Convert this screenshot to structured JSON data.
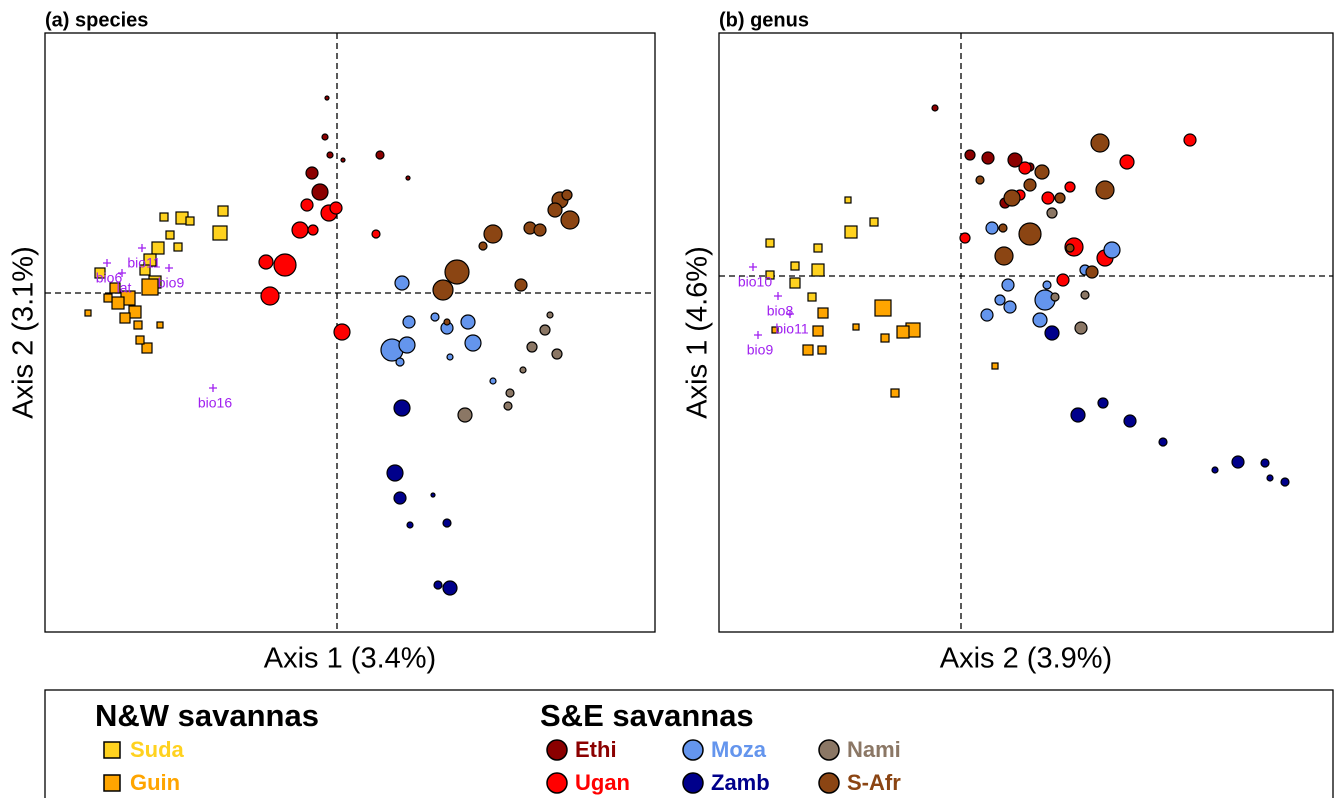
{
  "chart_data": [
    {
      "type": "scatter",
      "title": "(a) species",
      "xlabel": "Axis 1 (3.4%)",
      "ylabel": "Axis 2 (3.1%)",
      "xlim": [
        -2.92,
        3.18
      ],
      "ylim": [
        -3.39,
        2.6
      ],
      "series": [
        {
          "name": "Suda",
          "color": "#FFD21F",
          "shape": "square",
          "x": [
            -1.14,
            -1.17,
            -1.55,
            -1.47,
            -1.73,
            -1.79,
            -1.87,
            -1.92,
            -1.59,
            -2.37,
            -1.67,
            -1.82
          ],
          "y": [
            0.82,
            0.6,
            0.75,
            0.72,
            0.76,
            0.45,
            0.33,
            0.23,
            0.46,
            0.2,
            0.58,
            0.11
          ],
          "sizes": [
            5,
            7,
            6,
            4,
            4,
            6,
            6,
            5,
            4,
            5,
            4,
            6
          ]
        },
        {
          "name": "Guin",
          "color": "#FFA500",
          "shape": "square",
          "x": [
            -1.87,
            -2.09,
            -2.19,
            -2.02,
            -2.12,
            -1.9,
            -1.97,
            -2.29,
            -2.49,
            -1.77,
            -2.22,
            -1.99
          ],
          "y": [
            0.06,
            -0.05,
            -0.1,
            -0.19,
            -0.25,
            -0.55,
            -0.47,
            -0.05,
            -0.2,
            -0.32,
            0.05,
            -0.32
          ],
          "sizes": [
            8,
            7,
            6,
            6,
            5,
            5,
            4,
            4,
            3,
            3,
            5,
            4
          ]
        },
        {
          "name": "Ethi",
          "color": "#8B0000",
          "shape": "circle",
          "x": [
            -0.25,
            -0.17,
            -0.07,
            0.43,
            -0.1,
            0.06,
            0.71,
            -0.12
          ],
          "y": [
            1.2,
            1.01,
            1.38,
            1.38,
            1.95,
            1.33,
            1.15,
            1.56
          ],
          "sizes": [
            6,
            8,
            3,
            4,
            2,
            2,
            2,
            3
          ]
        },
        {
          "name": "Ugan",
          "color": "#FF0000",
          "shape": "circle",
          "x": [
            -0.52,
            -0.67,
            -0.71,
            -0.37,
            -0.24,
            -0.08,
            -0.3,
            -0.01,
            0.05,
            0.39
          ],
          "y": [
            0.28,
            -0.03,
            0.31,
            0.63,
            0.63,
            0.8,
            0.88,
            0.85,
            -0.39,
            0.59
          ],
          "sizes": [
            11,
            9,
            7,
            8,
            5,
            8,
            6,
            6,
            8,
            4
          ]
        },
        {
          "name": "Moza",
          "color": "#6495ED",
          "shape": "circle",
          "x": [
            0.55,
            0.7,
            0.65,
            1.1,
            1.31,
            1.36,
            0.72,
            0.63,
            0.98,
            1.56,
            1.13
          ],
          "y": [
            -0.57,
            -0.52,
            0.1,
            -0.35,
            -0.29,
            -0.5,
            -0.29,
            -0.69,
            -0.24,
            -0.88,
            -0.64
          ],
          "sizes": [
            11,
            8,
            7,
            6,
            7,
            8,
            6,
            4,
            4,
            3,
            3
          ]
        },
        {
          "name": "Zamb",
          "color": "#00008B",
          "shape": "circle",
          "x": [
            0.65,
            0.58,
            1.13,
            0.63,
            1.01,
            0.73,
            1.1,
            0.96
          ],
          "y": [
            -1.15,
            -1.8,
            -2.95,
            -2.05,
            -2.92,
            -2.32,
            -2.3,
            -2.02
          ],
          "sizes": [
            8,
            8,
            7,
            6,
            4,
            3,
            4,
            2
          ]
        },
        {
          "name": "Nami",
          "color": "#8B7765",
          "shape": "circle",
          "x": [
            1.28,
            2.2,
            1.95,
            2.08,
            1.71,
            1.73,
            2.13,
            1.86
          ],
          "y": [
            -1.22,
            -0.61,
            -0.54,
            -0.37,
            -1.13,
            -1.0,
            -0.22,
            -0.77
          ],
          "sizes": [
            7,
            5,
            5,
            5,
            4,
            4,
            3,
            3
          ]
        },
        {
          "name": "S-Afr",
          "color": "#8B4513",
          "shape": "circle",
          "x": [
            1.2,
            1.06,
            1.56,
            2.33,
            2.23,
            2.18,
            1.93,
            2.03,
            1.84,
            1.46,
            2.3,
            1.1
          ],
          "y": [
            0.21,
            0.03,
            0.59,
            0.73,
            0.93,
            0.83,
            0.65,
            0.63,
            0.08,
            0.47,
            0.98,
            -0.29
          ],
          "sizes": [
            12,
            10,
            9,
            9,
            8,
            7,
            6,
            6,
            6,
            4,
            5,
            3
          ]
        }
      ],
      "annotations": [
        {
          "label": "bio16",
          "x": -1.24,
          "y": -0.95
        },
        {
          "label": "bio6",
          "x": -2.3,
          "y": 0.3
        },
        {
          "label": "lat",
          "x": -2.15,
          "y": 0.2
        },
        {
          "label": "bio9",
          "x": -1.68,
          "y": 0.25
        },
        {
          "label": "bio11",
          "x": -1.95,
          "y": 0.45
        }
      ]
    },
    {
      "type": "scatter",
      "title": "(b) genus",
      "xlabel": "Axis 2 (3.9%)",
      "ylabel": "Axis 1 (4.6%)",
      "xlim": [
        -2.42,
        3.72
      ],
      "ylim": [
        -3.56,
        2.43
      ],
      "series": [
        {
          "name": "Suda",
          "color": "#FFD21F",
          "shape": "square",
          "x": [
            -1.43,
            -1.1,
            -1.43,
            -1.66,
            -1.91,
            -1.49,
            -0.87,
            -1.66,
            -1.91,
            -1.13
          ],
          "y": [
            0.06,
            0.44,
            0.28,
            -0.07,
            0.33,
            -0.21,
            0.54,
            0.1,
            0.01,
            0.76
          ],
          "sizes": [
            6,
            6,
            4,
            5,
            4,
            4,
            4,
            4,
            4,
            3
          ]
        },
        {
          "name": "Guin",
          "color": "#FFA500",
          "shape": "square",
          "x": [
            -0.78,
            -0.48,
            -0.58,
            -1.38,
            -1.43,
            -1.53,
            -1.39,
            -0.76,
            -0.66,
            -1.05,
            -1.86,
            0.34
          ],
          "y": [
            -0.32,
            -0.54,
            -0.56,
            -0.37,
            -0.55,
            -0.74,
            -0.74,
            -0.62,
            -1.17,
            -0.51,
            -0.54,
            -0.9
          ],
          "sizes": [
            8,
            7,
            6,
            5,
            5,
            5,
            4,
            4,
            4,
            3,
            3,
            3
          ]
        },
        {
          "name": "Ethi",
          "color": "#8B0000",
          "shape": "circle",
          "x": [
            0.27,
            0.09,
            0.54,
            0.69,
            -0.26,
            0.44,
            0.91
          ],
          "y": [
            1.18,
            1.21,
            1.16,
            1.09,
            1.68,
            0.73,
            0.64
          ],
          "sizes": [
            6,
            5,
            7,
            4,
            3,
            5,
            4
          ]
        },
        {
          "name": "Ugan",
          "color": "#FF0000",
          "shape": "circle",
          "x": [
            1.13,
            1.44,
            1.66,
            2.29,
            1.02,
            0.87,
            1.09,
            0.04,
            0.64,
            0.59
          ],
          "y": [
            0.29,
            0.18,
            1.14,
            1.36,
            -0.04,
            0.78,
            0.89,
            0.38,
            1.08,
            0.81
          ],
          "sizes": [
            9,
            8,
            7,
            6,
            6,
            6,
            5,
            5,
            6,
            5
          ]
        },
        {
          "name": "Moza",
          "color": "#6495ED",
          "shape": "circle",
          "x": [
            0.84,
            1.51,
            0.79,
            0.31,
            0.49,
            0.26,
            0.47,
            1.24,
            0.86,
            0.39
          ],
          "y": [
            -0.24,
            0.26,
            -0.44,
            0.48,
            -0.31,
            -0.39,
            -0.09,
            0.06,
            -0.09,
            -0.24
          ],
          "sizes": [
            10,
            8,
            7,
            6,
            6,
            6,
            6,
            5,
            4,
            5
          ]
        },
        {
          "name": "Zamb",
          "color": "#00008B",
          "shape": "circle",
          "x": [
            0.91,
            1.17,
            1.69,
            2.77,
            1.42,
            2.02,
            2.54,
            3.24,
            3.09,
            3.04
          ],
          "y": [
            -0.57,
            -1.39,
            -1.45,
            -1.86,
            -1.27,
            -1.66,
            -1.94,
            -2.06,
            -2.02,
            -1.87
          ],
          "sizes": [
            7,
            7,
            6,
            6,
            5,
            4,
            3,
            4,
            3,
            4
          ]
        },
        {
          "name": "Nami",
          "color": "#8B7765",
          "shape": "circle",
          "x": [
            1.2,
            0.91,
            1.24,
            0.94,
            1.09
          ],
          "y": [
            -0.52,
            0.63,
            -0.19,
            -0.21,
            0.28
          ],
          "sizes": [
            6,
            5,
            4,
            4,
            3
          ]
        },
        {
          "name": "S-Afr",
          "color": "#8B4513",
          "shape": "circle",
          "x": [
            0.69,
            0.43,
            1.44,
            1.39,
            0.51,
            0.81,
            0.69,
            1.31,
            0.99,
            0.42,
            1.09,
            0.19
          ],
          "y": [
            0.42,
            0.2,
            0.86,
            1.33,
            0.78,
            1.04,
            0.91,
            0.04,
            0.78,
            0.48,
            0.28,
            0.96
          ],
          "sizes": [
            11,
            9,
            9,
            9,
            8,
            7,
            6,
            6,
            5,
            4,
            4,
            4
          ]
        }
      ],
      "annotations": [
        {
          "label": "bio10",
          "x": -2.08,
          "y": 0.09
        },
        {
          "label": "bio8",
          "x": -1.83,
          "y": -0.2
        },
        {
          "label": "bio11",
          "x": -1.71,
          "y": -0.38
        },
        {
          "label": "bio9",
          "x": -2.03,
          "y": -0.59
        }
      ]
    }
  ],
  "legend": {
    "groups": [
      {
        "title": "N&W savannas",
        "entries": [
          {
            "name": "Suda",
            "color": "#FFD21F",
            "shape": "square"
          },
          {
            "name": "Guin",
            "color": "#FFA500",
            "shape": "square"
          }
        ]
      },
      {
        "title": "S&E savannas",
        "entries": [
          {
            "name": "Ethi",
            "color": "#8B0000",
            "shape": "circle"
          },
          {
            "name": "Ugan",
            "color": "#FF0000",
            "shape": "circle"
          },
          {
            "name": "Moza",
            "color": "#6495ED",
            "shape": "circle"
          },
          {
            "name": "Zamb",
            "color": "#00008B",
            "shape": "circle"
          },
          {
            "name": "Nami",
            "color": "#8B7765",
            "shape": "circle"
          },
          {
            "name": "S-Afr",
            "color": "#8B4513",
            "shape": "circle"
          }
        ]
      }
    ]
  }
}
